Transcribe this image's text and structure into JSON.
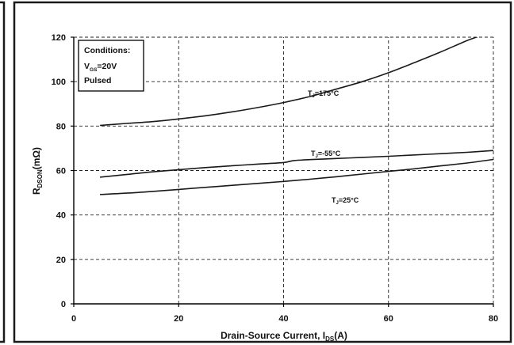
{
  "chart_data": {
    "type": "line",
    "xlabel": "Drain-Source Current, I_DS(A)",
    "xlabel_parts": {
      "main": "Drain-Source Current, I",
      "sub": "DS",
      "tail": "(A)"
    },
    "ylabel": "R_DSON(mΩ)",
    "ylabel_parts": {
      "main": "R",
      "sub": "DSON",
      "tail": "(mΩ)"
    },
    "xlim": [
      0,
      80
    ],
    "ylim": [
      0,
      120
    ],
    "xticks": [
      "0",
      "20",
      "40",
      "60",
      "80"
    ],
    "yticks": [
      "0",
      "20",
      "40",
      "60",
      "80",
      "100",
      "120"
    ],
    "grid": true,
    "conditions": {
      "title": "Conditions:",
      "vgs": {
        "main": "V",
        "sub": "GS",
        "tail": "=20V"
      },
      "mode": "Pulsed"
    },
    "series": [
      {
        "name": "TJ=175°C",
        "label_parts": {
          "main": "T",
          "sub": "J",
          "tail": "=175°C"
        },
        "x": [
          5,
          10,
          15,
          20,
          25,
          30,
          35,
          40,
          45,
          50,
          55,
          60,
          65,
          70,
          75,
          78
        ],
        "y": [
          80.3,
          81.2,
          82.0,
          83.2,
          84.6,
          86.3,
          88.3,
          90.6,
          93.3,
          96.6,
          100.0,
          104.0,
          108.6,
          113.4,
          118.5,
          121.0
        ]
      },
      {
        "name": "TJ=-55°C",
        "label_parts": {
          "main": "T",
          "sub": "J",
          "tail": "=-55°C"
        },
        "x": [
          5,
          10,
          15,
          20,
          25,
          30,
          35,
          40,
          42,
          45,
          50,
          55,
          60,
          65,
          70,
          75,
          80
        ],
        "y": [
          57.0,
          58.2,
          59.4,
          60.4,
          61.3,
          62.1,
          62.9,
          63.6,
          64.5,
          64.9,
          65.4,
          65.9,
          66.4,
          67.0,
          67.6,
          68.2,
          69.0
        ]
      },
      {
        "name": "TJ=25°C",
        "label_parts": {
          "main": "T",
          "sub": "J",
          "tail": "=25°C"
        },
        "x": [
          5,
          10,
          15,
          20,
          25,
          30,
          35,
          40,
          45,
          50,
          55,
          60,
          65,
          70,
          75,
          80
        ],
        "y": [
          49.2,
          49.8,
          50.6,
          51.5,
          52.4,
          53.3,
          54.2,
          55.1,
          56.1,
          57.2,
          58.4,
          59.6,
          60.8,
          62.1,
          63.4,
          65.0
        ]
      }
    ]
  }
}
